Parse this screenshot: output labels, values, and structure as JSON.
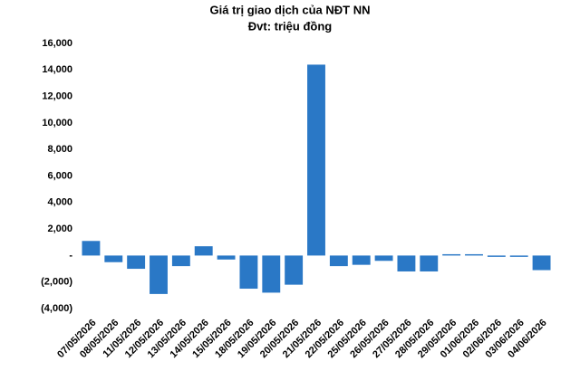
{
  "chart_data": {
    "type": "bar",
    "title": "Giá trị giao dịch của NĐT NN",
    "subtitle": "Đvt: triệu đồng",
    "categories": [
      "07/05/2026",
      "08/05/2026",
      "11/05/2026",
      "12/05/2026",
      "13/05/2026",
      "14/05/2026",
      "15/05/2026",
      "18/05/2026",
      "19/05/2026",
      "20/05/2026",
      "21/05/2026",
      "22/05/2026",
      "25/05/2026",
      "26/05/2026",
      "27/05/2026",
      "28/05/2026",
      "29/05/2026",
      "01/06/2026",
      "02/06/2026",
      "03/06/2026",
      "04/06/2026"
    ],
    "values": [
      1100,
      -500,
      -1000,
      -2900,
      -800,
      700,
      -300,
      -2500,
      -2800,
      -2200,
      14400,
      -800,
      -700,
      -400,
      -1200,
      -1200,
      100,
      100,
      -100,
      -100,
      -1100
    ],
    "color": "#2a78c6",
    "ylim": [
      -4000,
      16000
    ],
    "yticks": [
      {
        "value": -4000,
        "label": "(4,000)"
      },
      {
        "value": -2000,
        "label": "(2,000)"
      },
      {
        "value": 0,
        "label": "-"
      },
      {
        "value": 2000,
        "label": "2,000"
      },
      {
        "value": 4000,
        "label": "4,000"
      },
      {
        "value": 6000,
        "label": "6,000"
      },
      {
        "value": 8000,
        "label": "8,000"
      },
      {
        "value": 10000,
        "label": "10,000"
      },
      {
        "value": 12000,
        "label": "12,000"
      },
      {
        "value": 14000,
        "label": "14,000"
      },
      {
        "value": 16000,
        "label": "16,000"
      }
    ],
    "grid": false
  }
}
